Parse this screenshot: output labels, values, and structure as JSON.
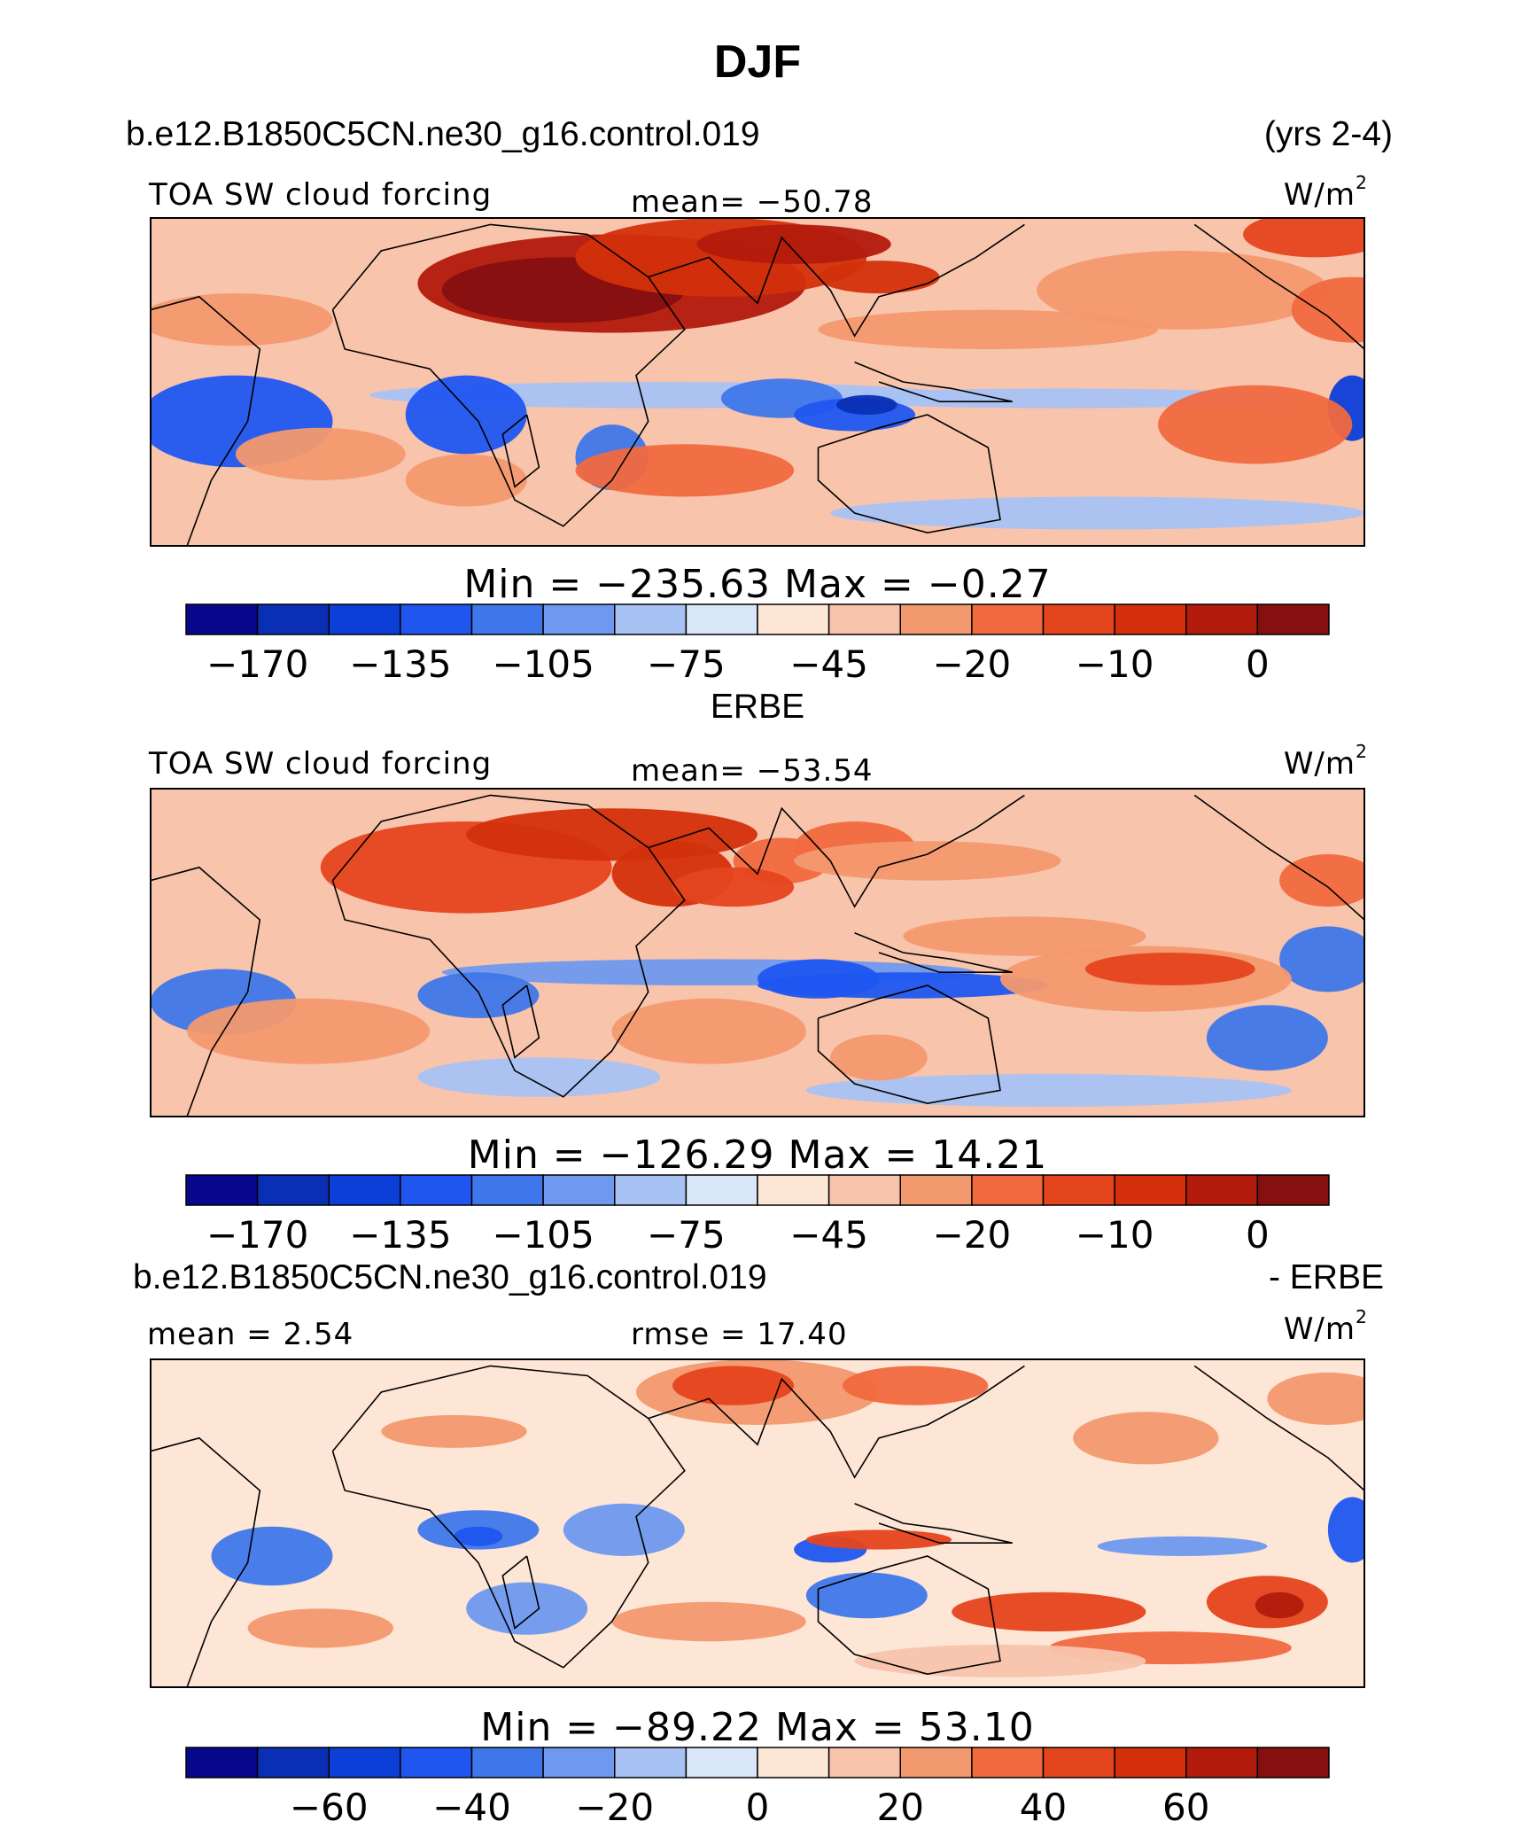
{
  "page": {
    "title": "DJF",
    "case_name": "b.e12.B1850C5CN.ne30_g16.control.019",
    "years": "(yrs 2-4)",
    "obs_label": "ERBE",
    "diff_case_name": "b.e12.B1850C5CN.ne30_g16.control.019",
    "diff_obs_label": "- ERBE"
  },
  "chart_data": [
    {
      "type": "heatmap",
      "name": "model",
      "variable": "TOA SW cloud forcing",
      "mean_text": "mean= −50.78",
      "units": "W/m",
      "units_exp": "2",
      "min_max_text": "Min  =  −235.63  Max  =   −0.27",
      "min": -235.63,
      "max": -0.27,
      "mean": -50.78,
      "colorbar": {
        "colors": [
          "#08088c",
          "#0a2fb4",
          "#0c3ed8",
          "#1f56f0",
          "#3f77ea",
          "#6f99ee",
          "#a8c2f4",
          "#d8e6f8",
          "#fde6d6",
          "#f8c4ac",
          "#f3996f",
          "#f1693f",
          "#e5451d",
          "#d3300b",
          "#b21a0c",
          "#861010"
        ],
        "tick_labels": [
          "−170",
          "−135",
          "−105",
          "−75",
          "−45",
          "−20",
          "−10",
          "0"
        ]
      }
    },
    {
      "type": "heatmap",
      "name": "obs",
      "variable": "TOA SW cloud forcing",
      "mean_text": "mean= −53.54",
      "units": "W/m",
      "units_exp": "2",
      "min_max_text": "Min  =  −126.29  Max  =   14.21",
      "min": -126.29,
      "max": 14.21,
      "mean": -53.54,
      "colorbar": {
        "colors": [
          "#08088c",
          "#0a2fb4",
          "#0c3ed8",
          "#1f56f0",
          "#3f77ea",
          "#6f99ee",
          "#a8c2f4",
          "#d8e6f8",
          "#fde6d6",
          "#f8c4ac",
          "#f3996f",
          "#f1693f",
          "#e5451d",
          "#d3300b",
          "#b21a0c",
          "#861010"
        ],
        "tick_labels": [
          "−170",
          "−135",
          "−105",
          "−75",
          "−45",
          "−20",
          "−10",
          "0"
        ]
      }
    },
    {
      "type": "heatmap",
      "name": "difference",
      "mean_text": "mean  =    2.54",
      "rmse_text": "rmse  =   17.40",
      "units": "W/m",
      "units_exp": "2",
      "min_max_text": "Min  =  −89.22  Max  =   53.10",
      "min": -89.22,
      "max": 53.1,
      "mean": 2.54,
      "rmse": 17.4,
      "colorbar": {
        "colors": [
          "#08088c",
          "#0a2fb4",
          "#0c3ed8",
          "#1f56f0",
          "#3f77ea",
          "#6f99ee",
          "#a8c2f4",
          "#d8e6f8",
          "#fde6d6",
          "#f8c4ac",
          "#f3996f",
          "#f1693f",
          "#e5451d",
          "#d3300b",
          "#b21a0c",
          "#861010"
        ],
        "tick_labels": [
          "−60",
          "−40",
          "−20",
          "0",
          "20",
          "40",
          "60"
        ]
      }
    }
  ]
}
